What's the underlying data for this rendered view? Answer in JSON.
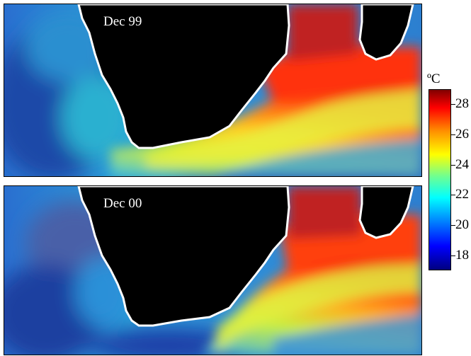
{
  "panels": [
    {
      "label": "Dec 99"
    },
    {
      "label": "Dec 00"
    }
  ],
  "colorbar": {
    "unit": "ºC",
    "min": 17,
    "max": 29,
    "ticks": [
      "28",
      "26",
      "24",
      "22",
      "20",
      "18"
    ]
  },
  "colors": {
    "land": "#000000",
    "coast": "#ffffff",
    "cold": "#1f5fbf",
    "warm": "#e0201a"
  }
}
